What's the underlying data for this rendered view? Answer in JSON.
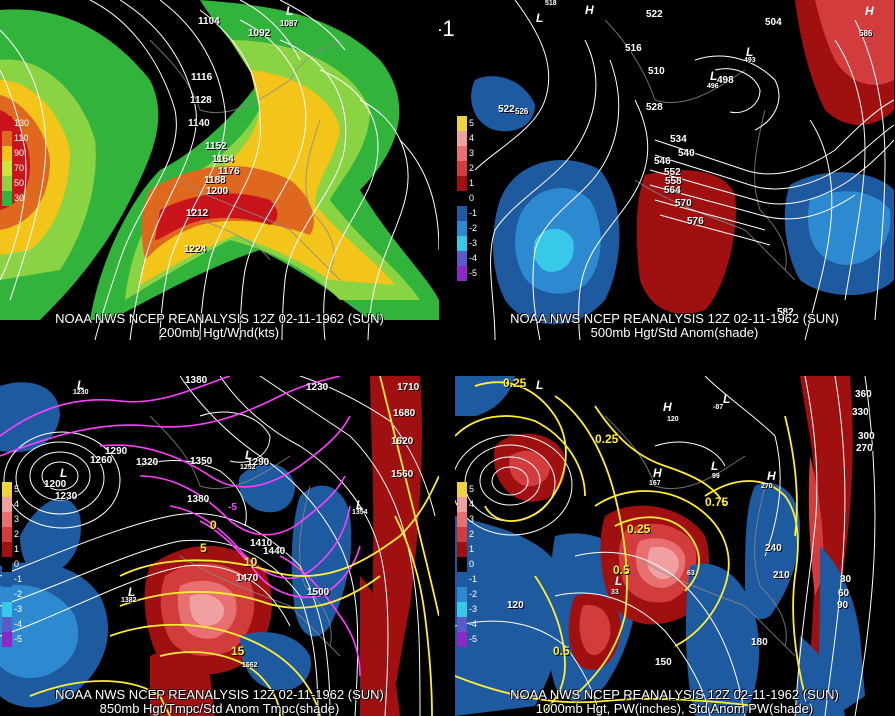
{
  "title": "12Z 02-11-1962 (SUN)",
  "panels": [
    {
      "id": "p1",
      "caption_line1": "NOAA NWS NCEP REANALYSIS 12Z 02-11-1962 (SUN)",
      "caption_line2": "200mb Hgt/Wnd(kts)",
      "legend": [
        {
          "label": "130",
          "color": "#c9141b"
        },
        {
          "label": "110",
          "color": "#e0681e"
        },
        {
          "label": "90",
          "color": "#f3c419"
        },
        {
          "label": "70",
          "color": "#c8e63c"
        },
        {
          "label": "50",
          "color": "#8ad443"
        },
        {
          "label": "30",
          "color": "#32b43c"
        }
      ],
      "contour_labels": [
        "1104",
        "1092",
        "1116",
        "1128",
        "1140",
        "1152",
        "1164",
        "1176",
        "1188",
        "1200",
        "1212",
        "1224"
      ],
      "pressure_labels": [
        "L"
      ],
      "pressure_values": [
        "1087"
      ]
    },
    {
      "id": "p2",
      "caption_line1": "NOAA NWS NCEP REANALYSIS 12Z 02-11-1962 (SUN)",
      "caption_line2": "500mb Hgt/Std Anom(shade)",
      "legend": [
        {
          "label": "5",
          "color": "#f0d23c"
        },
        {
          "label": "4",
          "color": "#f0a0a0"
        },
        {
          "label": "3",
          "color": "#e87070"
        },
        {
          "label": "2",
          "color": "#d23c3c"
        },
        {
          "label": "1",
          "color": "#a01010"
        },
        {
          "label": "0",
          "color": "#000000"
        },
        {
          "label": "-1",
          "color": "#1e5aa0"
        },
        {
          "label": "-2",
          "color": "#2e8ad0"
        },
        {
          "label": "-3",
          "color": "#38c8e8"
        },
        {
          "label": "-4",
          "color": "#5a5ac8"
        },
        {
          "label": "-5",
          "color": "#8c28c8"
        }
      ],
      "contour_labels": [
        "522",
        "504",
        "516",
        "510",
        "522",
        "528",
        "534",
        "540",
        "546",
        "552",
        "558",
        "564",
        "570",
        "576",
        "582",
        "586",
        "498",
        "526"
      ],
      "pressure_labels": [
        "L",
        "H",
        "L",
        "L",
        "H"
      ],
      "pressure_values": [
        "493",
        "496",
        "518"
      ]
    },
    {
      "id": "p3",
      "caption_line1": "NOAA NWS NCEP REANALYSIS 12Z 02-11-1962 (SUN)",
      "caption_line2": "850mb Hgt/Tmpc/Std Anom Tmpc(shade)",
      "legend": [
        {
          "label": "5",
          "color": "#f0d23c"
        },
        {
          "label": "4",
          "color": "#f0a0a0"
        },
        {
          "label": "3",
          "color": "#e87070"
        },
        {
          "label": "2",
          "color": "#d23c3c"
        },
        {
          "label": "1",
          "color": "#a01010"
        },
        {
          "label": "0",
          "color": "#000000"
        },
        {
          "label": "-1",
          "color": "#1e5aa0"
        },
        {
          "label": "-2",
          "color": "#2e8ad0"
        },
        {
          "label": "-3",
          "color": "#38c8e8"
        },
        {
          "label": "-4",
          "color": "#5a5ac8"
        },
        {
          "label": "-5",
          "color": "#8c28c8"
        }
      ],
      "contour_labels": [
        "1380",
        "1230",
        "1260",
        "1290",
        "1320",
        "1350",
        "1380",
        "1410",
        "1440",
        "1470",
        "1500",
        "1560",
        "1620",
        "1680",
        "1710",
        "1200",
        "1290",
        "1230"
      ],
      "temp_labels": [
        "0",
        "-5",
        "5",
        "10",
        "15"
      ],
      "pressure_labels": [
        "L",
        "L",
        "L",
        "L",
        "L"
      ],
      "pressure_values": [
        "1230",
        "1252",
        "1382",
        "1354",
        "1562"
      ]
    },
    {
      "id": "p4",
      "caption_line1": "NOAA NWS NCEP REANALYSIS 12Z 02-11-1962 (SUN)",
      "caption_line2": "1000mb Hgt, PW(inches), Std Anom PW(shade)",
      "legend": [
        {
          "label": "5",
          "color": "#f0d23c"
        },
        {
          "label": "4",
          "color": "#f0a0a0"
        },
        {
          "label": "3",
          "color": "#e87070"
        },
        {
          "label": "2",
          "color": "#d23c3c"
        },
        {
          "label": "1",
          "color": "#a01010"
        },
        {
          "label": "0",
          "color": "#000000"
        },
        {
          "label": "-1",
          "color": "#1e5aa0"
        },
        {
          "label": "-2",
          "color": "#2e8ad0"
        },
        {
          "label": "-3",
          "color": "#38c8e8"
        },
        {
          "label": "-4",
          "color": "#5a5ac8"
        },
        {
          "label": "-5",
          "color": "#8c28c8"
        }
      ],
      "contour_labels": [
        "360",
        "330",
        "300",
        "270",
        "240",
        "210",
        "180",
        "150",
        "120",
        "90",
        "60",
        "30"
      ],
      "pw_labels": [
        "0.25",
        "0.25",
        "0.25",
        "0.5",
        "0.75",
        "0.5"
      ],
      "pressure_labels": [
        "L",
        "L",
        "H",
        "H",
        "L",
        "H",
        "L"
      ],
      "pressure_values": [
        "-87",
        "120",
        "167",
        "270",
        "99",
        "33",
        "63"
      ]
    }
  ],
  "colors": {
    "background": "#000000",
    "contour": "#ffffff",
    "temp_contour": "#ffee33",
    "cold_contour": "#ff40ff",
    "map_outline": "#8a8a8a"
  }
}
